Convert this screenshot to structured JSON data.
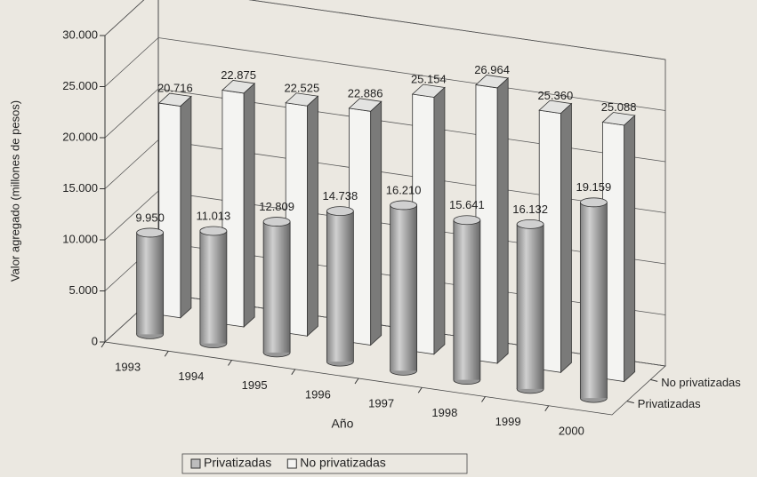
{
  "chart_data": {
    "type": "bar3d",
    "y_label": "Valor agregado (millones de pesos)",
    "x_label": "Año",
    "categories": [
      "1993",
      "1994",
      "1995",
      "1996",
      "1997",
      "1998",
      "1999",
      "2000"
    ],
    "series": [
      {
        "name": "Privatizadas",
        "color": "#bdbdbd",
        "shape": "cylinder",
        "values": [
          9950,
          11013,
          12809,
          14738,
          16210,
          15641,
          16132,
          19159
        ],
        "value_labels": [
          "9.950",
          "11.013",
          "12.809",
          "14.738",
          "16.210",
          "15.641",
          "16.132",
          "19.159"
        ]
      },
      {
        "name": "No privatizadas",
        "color": "#f4f4f2",
        "shape": "box",
        "values": [
          20716,
          22875,
          22525,
          22886,
          25154,
          26964,
          25360,
          25088
        ],
        "value_labels": [
          "20.716",
          "22.875",
          "22.525",
          "22.886",
          "25.154",
          "26.964",
          "25.360",
          "25.088"
        ]
      }
    ],
    "ylim": [
      0,
      30000
    ],
    "yticks": [
      0,
      {
        "value": 5000,
        "label": "5.000"
      },
      {
        "value": 10000,
        "label": "10.000"
      },
      {
        "value": 15000,
        "label": "15.000"
      },
      {
        "value": 20000,
        "label": "20.000"
      },
      {
        "value": 25000,
        "label": "25.000"
      },
      {
        "value": 30000,
        "label": "30.000"
      }
    ],
    "grid": true,
    "legend": "bottom"
  }
}
